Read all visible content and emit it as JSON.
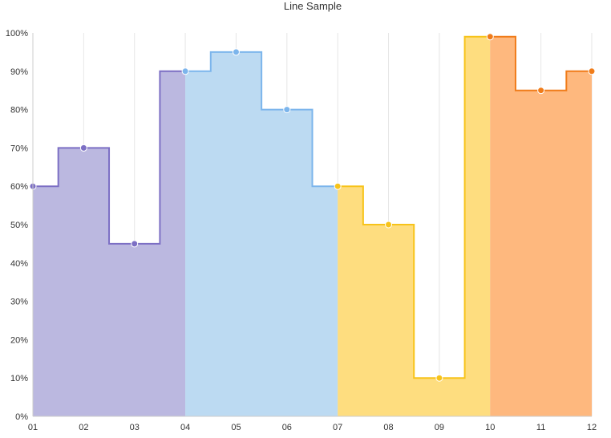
{
  "chart_data": {
    "type": "area",
    "title": "Line Sample",
    "xlabel": "",
    "ylabel": "",
    "interpolation": "step",
    "categories": [
      "01",
      "02",
      "03",
      "04",
      "05",
      "06",
      "07",
      "08",
      "09",
      "10",
      "11",
      "12"
    ],
    "y_ticks": [
      "0%",
      "10%",
      "20%",
      "30%",
      "40%",
      "50%",
      "60%",
      "70%",
      "80%",
      "90%",
      "100%"
    ],
    "ylim": [
      0,
      100
    ],
    "y_unit": "%",
    "grid": {
      "vertical": true,
      "horizontal": false
    },
    "values": [
      60,
      70,
      45,
      90,
      95,
      80,
      60,
      50,
      10,
      99,
      85,
      90
    ],
    "segments": [
      {
        "from": "01",
        "to": "04",
        "line_color": "#7c6fc4",
        "fill_color": "#bbb8e0"
      },
      {
        "from": "04",
        "to": "07",
        "line_color": "#7cb5ec",
        "fill_color": "#bcdaf2"
      },
      {
        "from": "07",
        "to": "10",
        "line_color": "#f7c31a",
        "fill_color": "#fedd7f"
      },
      {
        "from": "10",
        "to": "12",
        "line_color": "#f07c1a",
        "fill_color": "#feb87e"
      }
    ]
  }
}
